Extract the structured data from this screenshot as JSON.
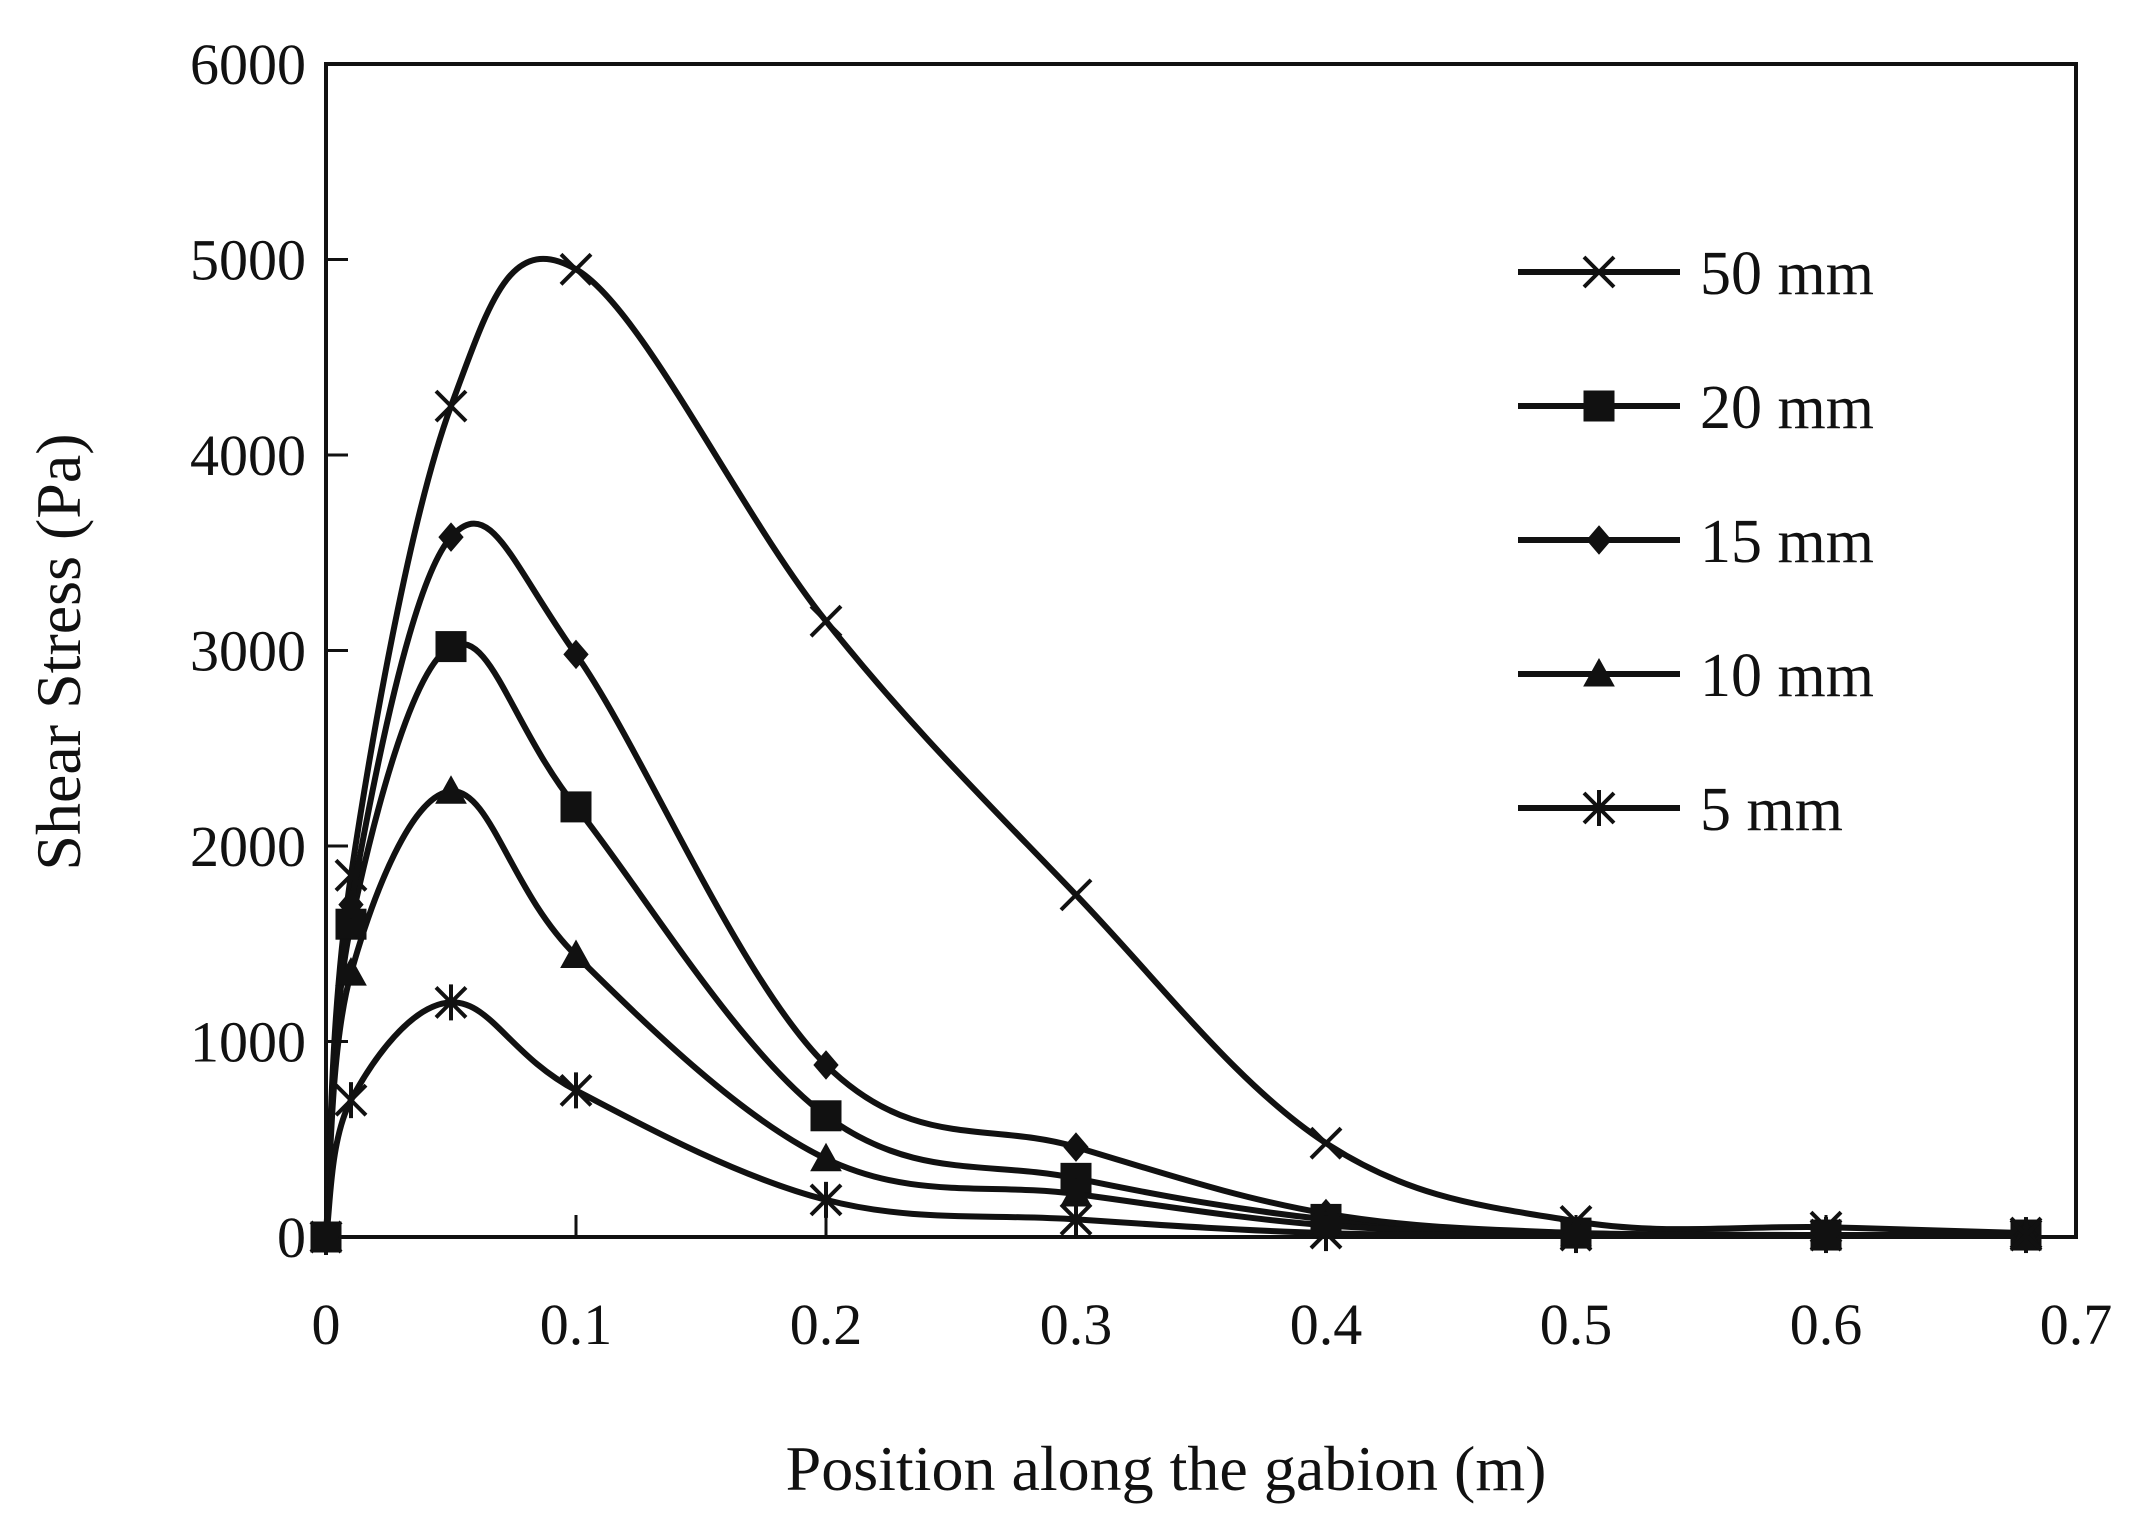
{
  "chart_data": {
    "type": "line",
    "title": "",
    "xlabel": "Position along the gabion (m)",
    "ylabel": "Shear Stress (Pa)",
    "xlim": [
      0,
      0.7
    ],
    "ylim": [
      0,
      6000
    ],
    "xticks": [
      0,
      0.1,
      0.2,
      0.3,
      0.4,
      0.5,
      0.6,
      0.7
    ],
    "xtick_labels": [
      "0",
      "0.1",
      "0.2",
      "0.3",
      "0.4",
      "0.5",
      "0.6",
      "0.7"
    ],
    "yticks": [
      0,
      1000,
      2000,
      3000,
      4000,
      5000,
      6000
    ],
    "ytick_labels": [
      "0",
      "1000",
      "2000",
      "3000",
      "4000",
      "5000",
      "6000"
    ],
    "grid": false,
    "legend_position": "top-right",
    "series": [
      {
        "name": "50 mm",
        "marker": "x",
        "x": [
          0,
          0.01,
          0.05,
          0.1,
          0.2,
          0.3,
          0.4,
          0.5,
          0.6,
          0.68
        ],
        "y": [
          0,
          1850,
          4250,
          4950,
          3150,
          1750,
          480,
          80,
          50,
          20
        ]
      },
      {
        "name": "20 mm",
        "marker": "square",
        "x": [
          0,
          0.01,
          0.05,
          0.1,
          0.2,
          0.3,
          0.4,
          0.5,
          0.6,
          0.68
        ],
        "y": [
          0,
          1600,
          3020,
          2200,
          620,
          300,
          90,
          20,
          10,
          10
        ]
      },
      {
        "name": "15 mm",
        "marker": "diamond",
        "x": [
          0,
          0.01,
          0.05,
          0.1,
          0.2,
          0.3,
          0.4,
          0.5,
          0.6,
          0.68
        ],
        "y": [
          0,
          1700,
          3580,
          2980,
          880,
          460,
          120,
          20,
          10,
          10
        ]
      },
      {
        "name": "10 mm",
        "marker": "triangle",
        "x": [
          0,
          0.01,
          0.05,
          0.1,
          0.2,
          0.3,
          0.4,
          0.5,
          0.6,
          0.68
        ],
        "y": [
          0,
          1350,
          2280,
          1440,
          400,
          220,
          60,
          20,
          10,
          10
        ]
      },
      {
        "name": "5 mm",
        "marker": "asterisk",
        "x": [
          0,
          0.01,
          0.05,
          0.1,
          0.2,
          0.3,
          0.4,
          0.5,
          0.6,
          0.68
        ],
        "y": [
          0,
          700,
          1200,
          750,
          190,
          90,
          20,
          10,
          10,
          10
        ]
      }
    ]
  }
}
